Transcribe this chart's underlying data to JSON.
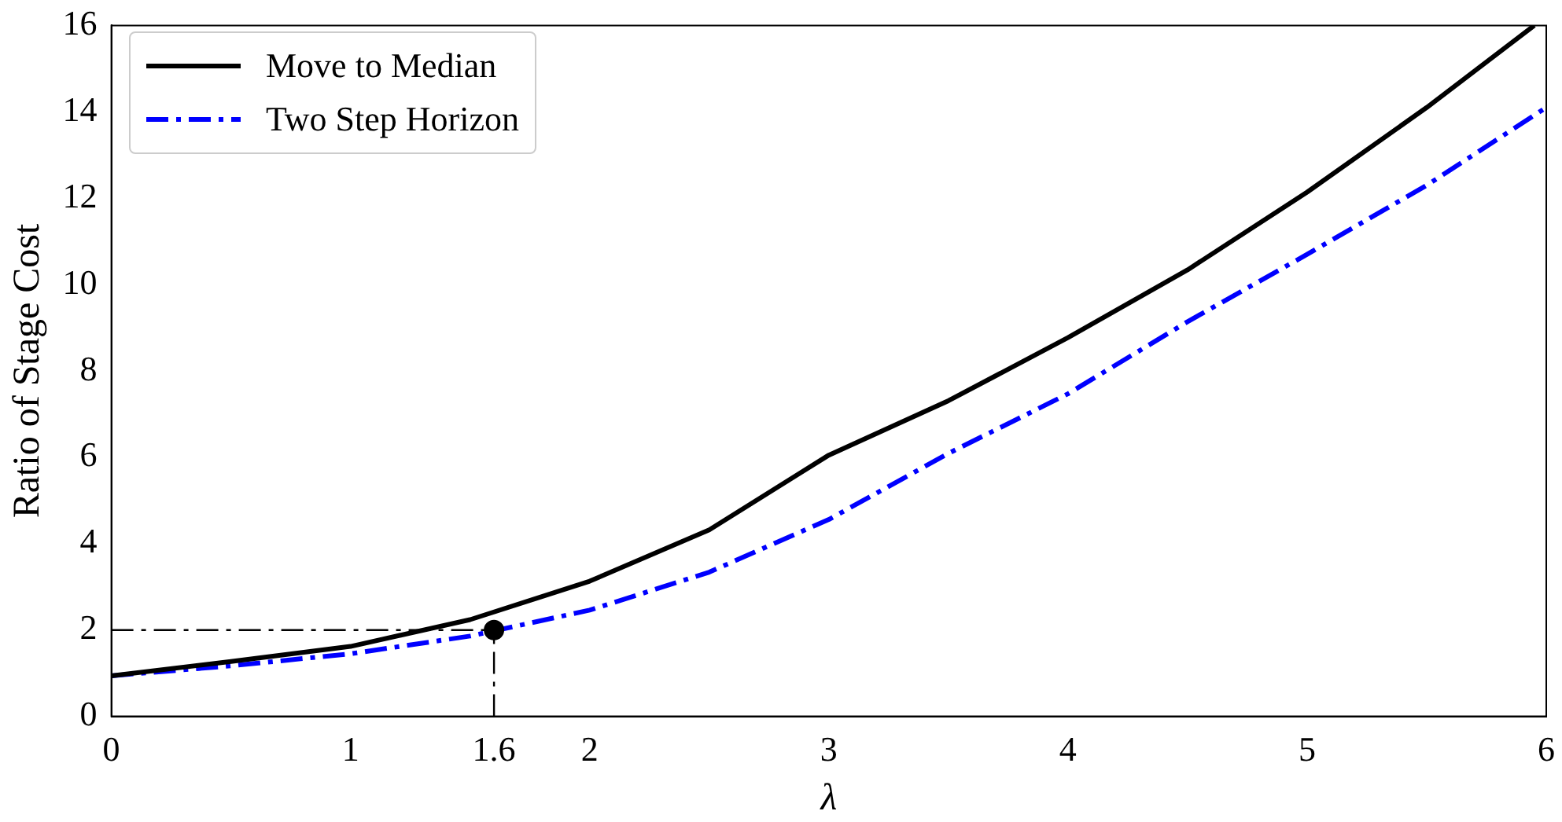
{
  "chart_data": {
    "type": "line",
    "xlabel": "λ",
    "ylabel": "Ratio of Stage Cost",
    "xlim": [
      0,
      6
    ],
    "ylim": [
      0,
      16
    ],
    "xticks": [
      0,
      1,
      1.6,
      2,
      3,
      4,
      5,
      6
    ],
    "yticks": [
      0,
      2,
      4,
      6,
      8,
      10,
      12,
      14,
      16
    ],
    "grid": false,
    "legend": "top left",
    "marker": "none",
    "series": [
      {
        "name": "Move to Median",
        "color": "#000000",
        "line_style": "solid",
        "x": [
          0,
          0.5,
          1,
          1.5,
          2,
          2.5,
          3,
          3.5,
          4,
          4.5,
          5,
          5.5,
          5.95
        ],
        "values": [
          0.94,
          1.27,
          1.62,
          2.24,
          3.13,
          4.32,
          6.05,
          7.31,
          8.77,
          10.34,
          12.14,
          14.1,
          16
        ]
      },
      {
        "name": "Two Step Horizon",
        "color": "#0000ff",
        "line_style": "dashed",
        "x": [
          0,
          0.5,
          1,
          1.5,
          2,
          2.5,
          3,
          3.5,
          4,
          4.5,
          5,
          5.5,
          6
        ],
        "values": [
          0.94,
          1.17,
          1.45,
          1.86,
          2.46,
          3.34,
          4.56,
          6.09,
          7.47,
          9.14,
          10.7,
          12.3,
          14.1
        ]
      },
      {
        "type": "scatter",
        "color": "#000000",
        "marker": "circle",
        "x": [
          1.6
        ],
        "values": [
          2
        ]
      }
    ],
    "ref_lines": [
      {
        "axis": "y",
        "value": 2,
        "color": "#000000",
        "line_style": "dashed"
      },
      {
        "axis": "x",
        "value": 1.6,
        "color": "#000000",
        "line_style": "dashed"
      }
    ]
  }
}
